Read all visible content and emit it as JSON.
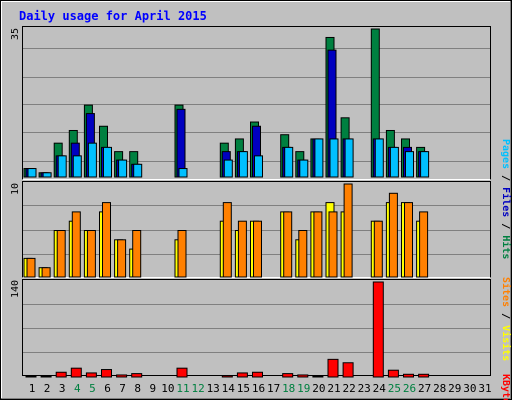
{
  "chart_data": [
    {
      "type": "bar",
      "title": "Daily usage for April 2015",
      "ymax_label": "35",
      "right_label_parts": [
        "Pages",
        " / ",
        "Files",
        " / ",
        "Hits"
      ],
      "colors": {
        "hits": "#008040",
        "files": "#0000c0",
        "pages": "#00c0ff"
      },
      "categories": [
        "1",
        "2",
        "3",
        "4",
        "5",
        "6",
        "7",
        "8",
        "9",
        "10",
        "11",
        "12",
        "13",
        "14",
        "15",
        "16",
        "17",
        "18",
        "19",
        "20",
        "21",
        "22",
        "23",
        "24",
        "25",
        "26",
        "27",
        "28",
        "29",
        "30",
        "31"
      ],
      "series": [
        {
          "name": "Hits",
          "values": [
            2,
            1,
            8,
            11,
            17,
            12,
            6,
            6,
            0,
            0,
            17,
            0,
            0,
            8,
            9,
            13,
            0,
            10,
            6,
            9,
            33,
            14,
            0,
            35,
            11,
            9,
            7,
            0,
            0,
            0,
            0
          ]
        },
        {
          "name": "Files",
          "values": [
            2,
            1,
            5,
            8,
            15,
            7,
            4,
            3,
            0,
            0,
            16,
            0,
            0,
            6,
            6,
            12,
            0,
            7,
            4,
            9,
            30,
            9,
            0,
            9,
            7,
            7,
            6,
            0,
            0,
            0,
            0
          ]
        },
        {
          "name": "Pages",
          "values": [
            2,
            1,
            5,
            5,
            8,
            7,
            4,
            3,
            0,
            0,
            2,
            0,
            0,
            4,
            6,
            5,
            0,
            7,
            4,
            9,
            9,
            9,
            0,
            9,
            7,
            6,
            6,
            0,
            0,
            0,
            0
          ]
        }
      ]
    },
    {
      "type": "bar",
      "ymax_label": "10",
      "right_label_parts": [
        "Sites",
        " / ",
        "Visits"
      ],
      "colors": {
        "visits": "#ffff00",
        "sites": "#ff8000"
      },
      "categories": [
        "1",
        "2",
        "3",
        "4",
        "5",
        "6",
        "7",
        "8",
        "9",
        "10",
        "11",
        "12",
        "13",
        "14",
        "15",
        "16",
        "17",
        "18",
        "19",
        "20",
        "21",
        "22",
        "23",
        "24",
        "25",
        "26",
        "27",
        "28",
        "29",
        "30",
        "31"
      ],
      "series": [
        {
          "name": "Visits",
          "values": [
            2,
            1,
            5,
            6,
            5,
            7,
            4,
            3,
            0,
            0,
            4,
            0,
            0,
            6,
            5,
            6,
            0,
            7,
            4,
            7,
            8,
            7,
            0,
            6,
            8,
            8,
            6,
            0,
            0,
            0,
            0
          ]
        },
        {
          "name": "Sites",
          "values": [
            2,
            1,
            5,
            7,
            5,
            8,
            4,
            5,
            0,
            0,
            5,
            0,
            0,
            8,
            6,
            6,
            0,
            7,
            5,
            7,
            7,
            10,
            0,
            6,
            9,
            8,
            7,
            0,
            0,
            0,
            0
          ]
        }
      ]
    },
    {
      "type": "bar",
      "ymax_label": "140",
      "right_label_parts": [
        "KBytes"
      ],
      "colors": {
        "kbytes": "#ff0000"
      },
      "categories": [
        "1",
        "2",
        "3",
        "4",
        "5",
        "6",
        "7",
        "8",
        "9",
        "10",
        "11",
        "12",
        "13",
        "14",
        "15",
        "16",
        "17",
        "18",
        "19",
        "20",
        "21",
        "22",
        "23",
        "24",
        "25",
        "26",
        "27",
        "28",
        "29",
        "30",
        "31"
      ],
      "series": [
        {
          "name": "KBytes",
          "values": [
            1,
            1,
            7,
            13,
            6,
            11,
            3,
            5,
            0,
            0,
            13,
            0,
            0,
            2,
            6,
            7,
            0,
            5,
            3,
            1,
            26,
            21,
            0,
            140,
            10,
            4,
            4,
            0,
            0,
            0,
            0
          ]
        }
      ]
    }
  ],
  "weekend_days": [
    4,
    5,
    11,
    12,
    18,
    19,
    25,
    26
  ],
  "day_label_colors": {
    "weekday": "#000000",
    "weekend": "#008040"
  },
  "title_color": "#0000ff"
}
